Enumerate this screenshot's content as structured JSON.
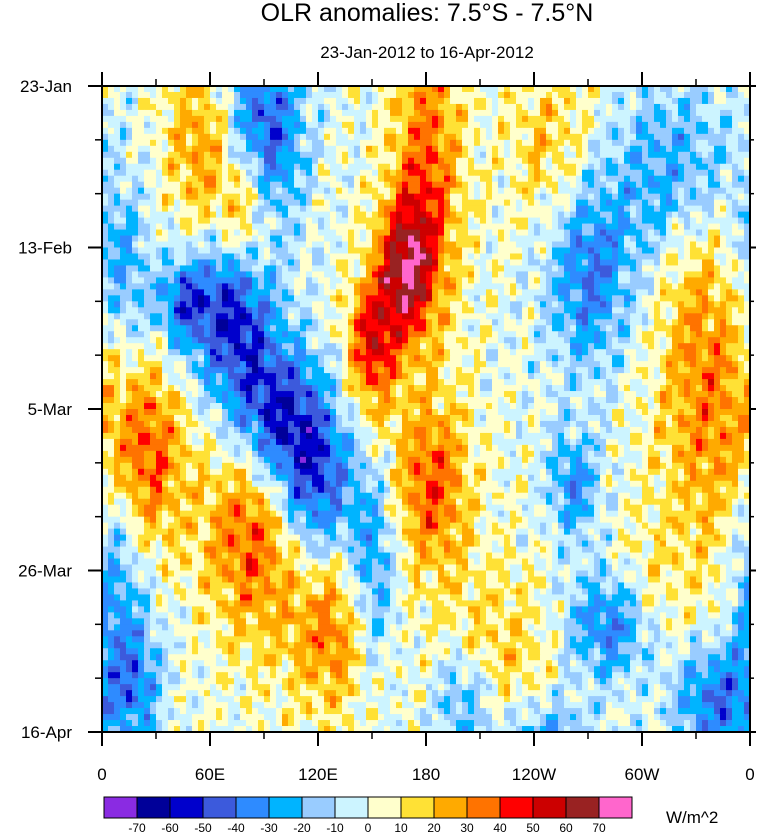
{
  "chart_data": {
    "type": "heatmap",
    "title": "OLR anomalies: 7.5°S - 7.5°N",
    "subtitle": "23-Jan-2012 to 16-Apr-2012",
    "xlabel": "",
    "ylabel": "",
    "x_tick_labels": [
      "0",
      "60E",
      "120E",
      "180",
      "120W",
      "60W",
      "0"
    ],
    "x_tick_lons": [
      0,
      60,
      120,
      180,
      240,
      300,
      360
    ],
    "xlim": [
      0,
      360
    ],
    "y_tick_labels": [
      "23-Jan",
      "13-Feb",
      "5-Mar",
      "26-Mar",
      "16-Apr"
    ],
    "y_tick_days": [
      0,
      21,
      42,
      63,
      84
    ],
    "ylim_days": [
      0,
      84
    ],
    "y_minor_step_days": 7,
    "x_minor_step_deg": 30,
    "colorbar": {
      "units": "W/m^2",
      "levels": [
        -70,
        -60,
        -50,
        -40,
        -30,
        -20,
        -10,
        0,
        10,
        20,
        30,
        40,
        50,
        60,
        70
      ],
      "colors": [
        "#8A2BE2",
        "#000099",
        "#0000CC",
        "#3C5ADC",
        "#2E8BFF",
        "#00B4FF",
        "#99CCFF",
        "#CCF4FF",
        "#FFFFCC",
        "#FFE135",
        "#FFAA00",
        "#FF7300",
        "#FF0000",
        "#CC0000",
        "#992222",
        "#FF66CC"
      ]
    },
    "features": [
      {
        "type": "positive",
        "lon": 180,
        "day": 12,
        "sx": 14,
        "sy": 14,
        "amp": 38
      },
      {
        "type": "positive",
        "lon": 168,
        "day": 24,
        "sx": 11,
        "sy": 6,
        "amp": 55
      },
      {
        "type": "positive",
        "lon": 150,
        "day": 34,
        "sx": 10,
        "sy": 6,
        "amp": 48
      },
      {
        "type": "positive",
        "lon": 183,
        "day": 52,
        "sx": 15,
        "sy": 8,
        "amp": 38
      },
      {
        "type": "positive",
        "lon": 250,
        "day": 8,
        "sx": 18,
        "sy": 8,
        "amp": 20
      },
      {
        "type": "positive",
        "lon": 85,
        "day": 57,
        "sx": 20,
        "sy": 10,
        "amp": 42
      },
      {
        "type": "positive",
        "lon": 130,
        "day": 70,
        "sx": 18,
        "sy": 8,
        "amp": 35
      },
      {
        "type": "positive",
        "lon": 25,
        "day": 48,
        "sx": 15,
        "sy": 8,
        "amp": 38
      },
      {
        "type": "positive",
        "lon": 55,
        "day": 8,
        "sx": 14,
        "sy": 8,
        "amp": 28
      },
      {
        "type": "positive",
        "lon": 80,
        "day": 16,
        "sx": 10,
        "sy": 6,
        "amp": 35
      },
      {
        "type": "positive",
        "lon": 340,
        "day": 43,
        "sx": 22,
        "sy": 14,
        "amp": 30
      },
      {
        "type": "positive",
        "lon": 300,
        "day": 68,
        "sx": 16,
        "sy": 6,
        "amp": 22
      },
      {
        "type": "positive",
        "lon": 220,
        "day": 75,
        "sx": 25,
        "sy": 9,
        "amp": 18
      },
      {
        "type": "positive",
        "lon": 330,
        "day": 22,
        "sx": 16,
        "sy": 10,
        "amp": 18
      },
      {
        "type": "negative",
        "lon": 90,
        "day": 6,
        "sx": 15,
        "sy": 9,
        "amp": -48
      },
      {
        "type": "negative",
        "lon": 72,
        "day": 30,
        "sx": 16,
        "sy": 7,
        "amp": -52
      },
      {
        "type": "negative",
        "lon": 45,
        "day": 28,
        "sx": 10,
        "sy": 4,
        "amp": -38
      },
      {
        "type": "negative",
        "lon": 95,
        "day": 43,
        "sx": 18,
        "sy": 7,
        "amp": -55
      },
      {
        "type": "negative",
        "lon": 118,
        "day": 52,
        "sx": 15,
        "sy": 8,
        "amp": -50
      },
      {
        "type": "negative",
        "lon": 150,
        "day": 64,
        "sx": 10,
        "sy": 9,
        "amp": -38
      },
      {
        "type": "negative",
        "lon": 200,
        "day": 80,
        "sx": 12,
        "sy": 5,
        "amp": -30
      },
      {
        "type": "negative",
        "lon": 270,
        "day": 24,
        "sx": 16,
        "sy": 9,
        "amp": -38
      },
      {
        "type": "negative",
        "lon": 320,
        "day": 12,
        "sx": 25,
        "sy": 9,
        "amp": -32
      },
      {
        "type": "negative",
        "lon": 285,
        "day": 70,
        "sx": 18,
        "sy": 5,
        "amp": -48
      },
      {
        "type": "negative",
        "lon": 340,
        "day": 80,
        "sx": 16,
        "sy": 5,
        "amp": -40
      },
      {
        "type": "negative",
        "lon": 5,
        "day": 64,
        "sx": 12,
        "sy": 12,
        "amp": -32
      },
      {
        "type": "negative",
        "lon": 20,
        "day": 78,
        "sx": 10,
        "sy": 6,
        "amp": -30
      },
      {
        "type": "negative",
        "lon": 262,
        "day": 52,
        "sx": 10,
        "sy": 5,
        "amp": -32
      },
      {
        "type": "negative",
        "lon": 245,
        "day": 85,
        "sx": 20,
        "sy": 4,
        "amp": -30
      },
      {
        "type": "negative",
        "lon": 10,
        "day": 24,
        "sx": 12,
        "sy": 8,
        "amp": -28
      }
    ]
  }
}
